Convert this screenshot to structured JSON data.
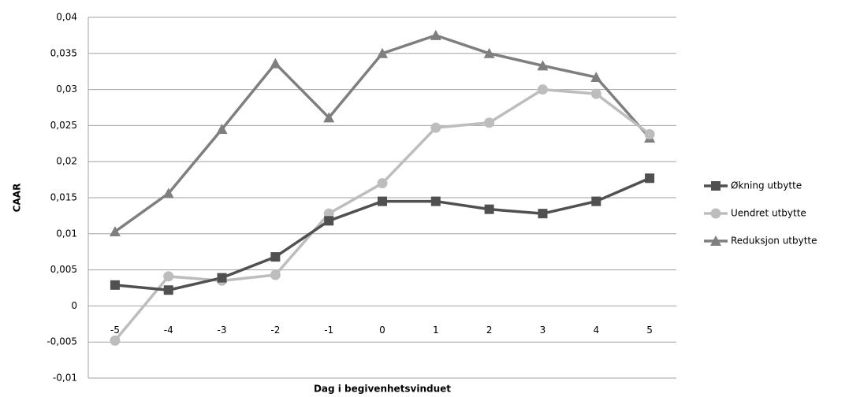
{
  "chart_data": {
    "type": "line",
    "y_label": "CAAR",
    "x_label": "Dag i begivenhetsvinduet",
    "categories": [
      "-5",
      "-4",
      "-3",
      "-2",
      "-1",
      "0",
      "1",
      "2",
      "3",
      "4",
      "5"
    ],
    "series": [
      {
        "name": "Økning utbytte",
        "color": "#505050",
        "marker": "square",
        "values": [
          0.0029,
          0.0022,
          0.0039,
          0.0068,
          0.0118,
          0.0145,
          0.0145,
          0.0134,
          0.0128,
          0.0145,
          0.0177
        ]
      },
      {
        "name": "Uendret utbytte",
        "color": "#bdbdbd",
        "marker": "circle",
        "values": [
          -0.0048,
          0.0041,
          0.0035,
          0.0043,
          0.0128,
          0.017,
          0.0247,
          0.0254,
          0.03,
          0.0294,
          0.0238
        ]
      },
      {
        "name": "Reduksjon utbytte",
        "color": "#7f7f7f",
        "marker": "triangle",
        "values": [
          0.0103,
          0.0156,
          0.0245,
          0.0336,
          0.0261,
          0.035,
          0.0375,
          0.035,
          0.0333,
          0.0317,
          0.0233
        ]
      }
    ],
    "ylim": [
      -0.01,
      0.04
    ],
    "yticks": [
      {
        "value": -0.01,
        "label": "-0,01"
      },
      {
        "value": -0.005,
        "label": "-0,005"
      },
      0,
      {
        "value": 0.005,
        "label": "0,005"
      },
      {
        "value": 0.01,
        "label": "0,01"
      },
      {
        "value": 0.015,
        "label": "0,015"
      },
      {
        "value": 0.02,
        "label": "0,02"
      },
      {
        "value": 0.025,
        "label": "0,025"
      },
      {
        "value": 0.03,
        "label": "0,03"
      },
      {
        "value": 0.035,
        "label": "0,035"
      },
      {
        "value": 0.04,
        "label": "0,04"
      }
    ],
    "grid": true,
    "legend": "right"
  }
}
